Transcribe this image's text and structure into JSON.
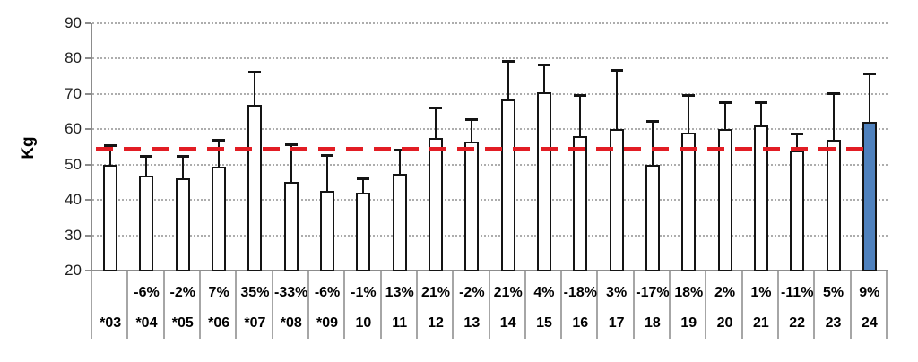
{
  "chart_data": {
    "type": "bar",
    "title": "",
    "ylabel": "Kg",
    "xlabel": "",
    "ylim": [
      20,
      90
    ],
    "yticks": [
      20,
      30,
      40,
      50,
      60,
      70,
      80,
      90
    ],
    "grid": "horizontal-dotted",
    "legend": "none",
    "categories": [
      "*03",
      "*04",
      "*05",
      "*06",
      "*07",
      "*08",
      "*09",
      "10",
      "11",
      "12",
      "13",
      "14",
      "15",
      "16",
      "17",
      "18",
      "19",
      "20",
      "21",
      "22",
      "23",
      "24"
    ],
    "change_labels": [
      "",
      "-6%",
      "-2%",
      "7%",
      "35%",
      "-33%",
      "-6%",
      "-1%",
      "13%",
      "21%",
      "-2%",
      "21%",
      "4%",
      "-18%",
      "3%",
      "-17%",
      "18%",
      "2%",
      "1%",
      "-11%",
      "5%",
      "9%"
    ],
    "values": [
      50,
      47,
      46,
      49.5,
      67,
      45,
      42.5,
      42,
      47.5,
      57.5,
      56.5,
      68.5,
      70.5,
      58,
      60,
      50,
      59,
      60,
      61,
      54,
      57,
      62
    ],
    "error_bar_tops": [
      55.8,
      52.8,
      52.8,
      57.3,
      76.5,
      56,
      53,
      46.5,
      54.5,
      66.5,
      63,
      79.5,
      78.5,
      70,
      77,
      62.5,
      70,
      68,
      68,
      59,
      70.5,
      76
    ],
    "reference_line": {
      "value": 54.5,
      "style": "dashed",
      "color": "#E21D24"
    },
    "highlight_index": 21,
    "colors": {
      "bar_fill": "#FFFFFF",
      "bar_border": "#141414",
      "highlight_fill": "#4F81BD",
      "gridline": "#ADADAD",
      "axis": "#8C8C8C",
      "separator": "#A6A6A6"
    }
  }
}
